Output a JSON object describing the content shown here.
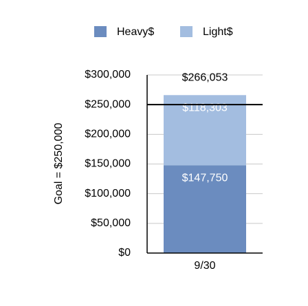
{
  "chart_data": {
    "type": "stacked-bar",
    "y_label": "Goal = $250,000",
    "categories": [
      "9/30"
    ],
    "series": [
      {
        "name": "Heavy$",
        "color": "#6b8cbf",
        "values": [
          147750
        ],
        "value_labels": [
          "$147,750"
        ]
      },
      {
        "name": "Light$",
        "color": "#a3bde0",
        "values": [
          118303
        ],
        "value_labels": [
          "$118,303"
        ]
      }
    ],
    "total_labels": [
      "$266,053"
    ],
    "goal": 250000,
    "ylim": [
      0,
      300000
    ],
    "yticks": [
      {
        "value": 0,
        "label": "$0"
      },
      {
        "value": 50000,
        "label": "$50,000"
      },
      {
        "value": 100000,
        "label": "$100,000"
      },
      {
        "value": 150000,
        "label": "$150,000"
      },
      {
        "value": 200000,
        "label": "$200,000"
      },
      {
        "value": 250000,
        "label": "$250,000"
      },
      {
        "value": 300000,
        "label": "$300,000"
      }
    ],
    "grid": true,
    "legend": "top"
  }
}
